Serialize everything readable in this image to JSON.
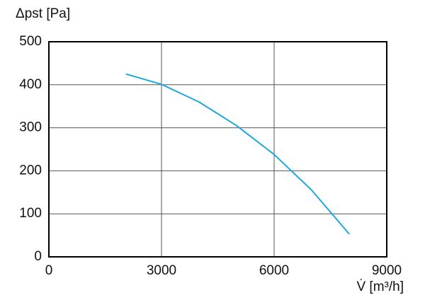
{
  "chart_data": {
    "type": "line",
    "y_label": "Δpst [Pa]",
    "x_label": "V̇ [m³/h]",
    "x": [
      2050,
      3000,
      4000,
      5000,
      6000,
      7000,
      8000
    ],
    "series": [
      {
        "color": "#1ea6e0",
        "values": [
          425,
          401,
          360,
          305,
          238,
          155,
          53
        ]
      }
    ],
    "xlim": [
      0,
      9000
    ],
    "xticks": [
      0,
      3000,
      6000,
      9000
    ],
    "ylim": [
      0,
      500
    ],
    "yticks": [
      0,
      100,
      200,
      300,
      400,
      500
    ],
    "grid": true
  }
}
